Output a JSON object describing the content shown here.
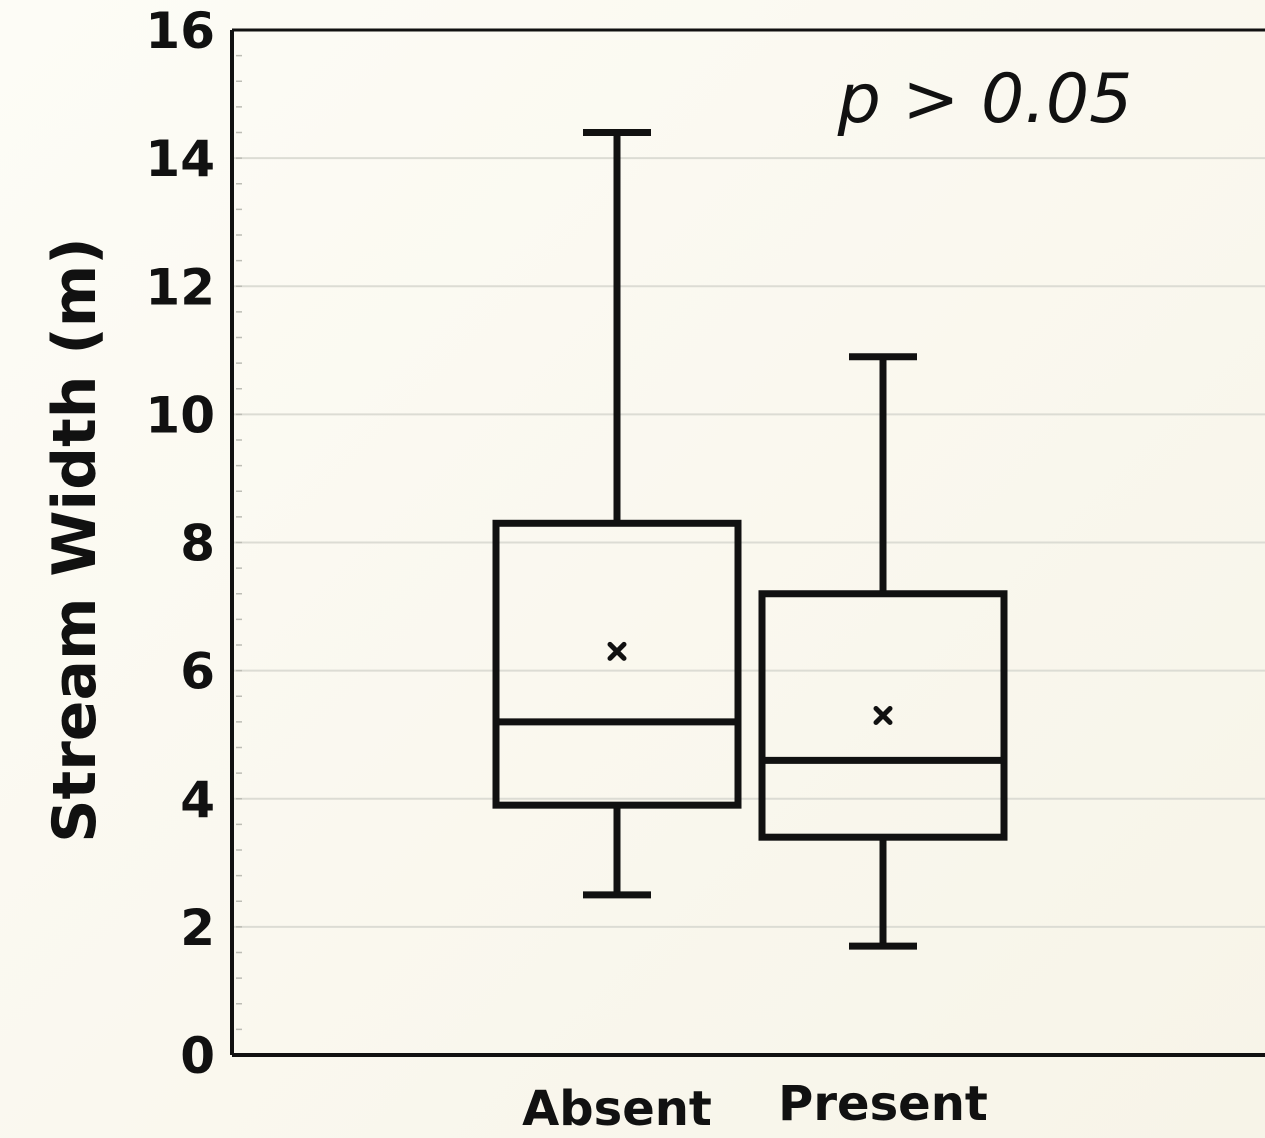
{
  "chart_data": {
    "type": "box",
    "ylabel": "Stream Width (m)",
    "xlabel": "",
    "ylim": [
      0,
      16
    ],
    "yticks": [
      0,
      2,
      4,
      6,
      8,
      10,
      12,
      14,
      16
    ],
    "grid": true,
    "categories": [
      "Absent",
      "Present"
    ],
    "boxes": [
      {
        "category": "Absent",
        "min": 2.5,
        "q1": 3.9,
        "median": 5.2,
        "mean": 6.3,
        "q3": 8.3,
        "max": 14.4
      },
      {
        "category": "Present",
        "min": 1.7,
        "q1": 3.4,
        "median": 4.6,
        "mean": 5.3,
        "q3": 7.2,
        "max": 10.9
      }
    ],
    "annotation": "p > 0.05",
    "colors": {
      "stroke": "#111111",
      "grid": "#dcdcd4",
      "background": "#fbf9f1"
    }
  }
}
